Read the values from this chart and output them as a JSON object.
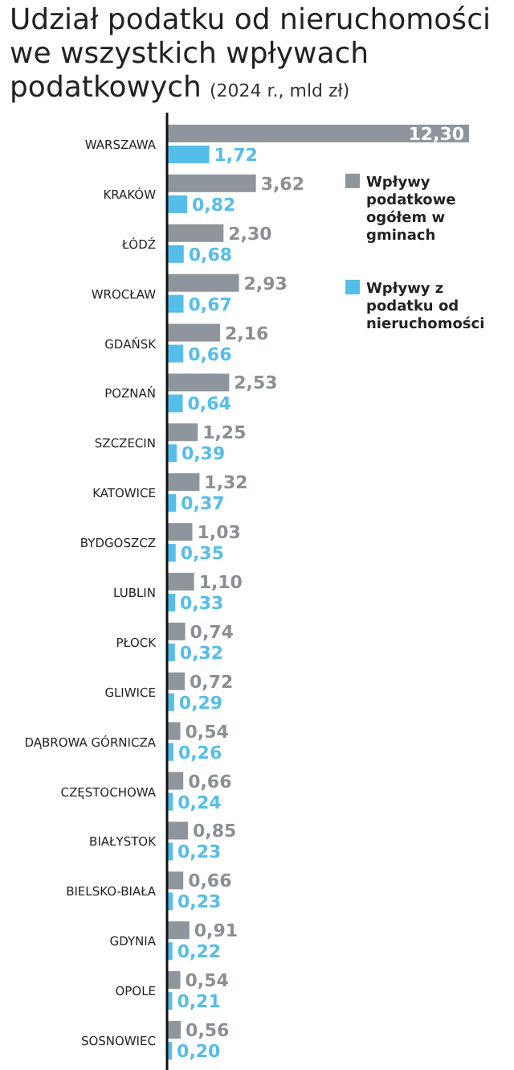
{
  "chart_data": {
    "type": "bar",
    "orientation": "horizontal",
    "title": "Udział podatku od nieruchomości we wszystkich wpływach podatkowych",
    "subtitle": "(2024 r., mld zł)",
    "legend": "right",
    "categories": [
      "WARSZAWA",
      "KRAKÓW",
      "ŁÓDŹ",
      "WROCŁAW",
      "GDAŃSK",
      "POZNAŃ",
      "SZCZECIN",
      "KATOWICE",
      "BYDGOSZCZ",
      "LUBLIN",
      "PŁOCK",
      "GLIWICE",
      "DĄBROWA GÓRNICZA",
      "CZĘSTOCHOWA",
      "BIAŁYSTOK",
      "BIELSKO-BIAŁA",
      "GDYNIA",
      "OPOLE",
      "SOSNOWIEC"
    ],
    "series": [
      {
        "name": "Wpływy podatkowe ogółem w gminach",
        "color": "#8e959c",
        "values": [
          12.3,
          3.62,
          2.3,
          2.93,
          2.16,
          2.53,
          1.25,
          1.32,
          1.03,
          1.1,
          0.74,
          0.72,
          0.54,
          0.66,
          0.85,
          0.66,
          0.91,
          0.54,
          0.56
        ],
        "value_labels": [
          "12,30",
          "3,62",
          "2,30",
          "2,93",
          "2,16",
          "2,53",
          "1,25",
          "1,32",
          "1,03",
          "1,10",
          "0,74",
          "0,72",
          "0,54",
          "0,66",
          "0,85",
          "0,66",
          "0,91",
          "0,54",
          "0,56"
        ]
      },
      {
        "name": "Wpływy z podatku od nieruchomości",
        "color": "#55bde9",
        "values": [
          1.72,
          0.82,
          0.68,
          0.67,
          0.66,
          0.64,
          0.39,
          0.37,
          0.35,
          0.33,
          0.32,
          0.29,
          0.26,
          0.24,
          0.23,
          0.23,
          0.22,
          0.21,
          0.2
        ],
        "value_labels": [
          "1,72",
          "0,82",
          "0,68",
          "0,67",
          "0,66",
          "0,64",
          "0,39",
          "0,37",
          "0,35",
          "0,33",
          "0,32",
          "0,29",
          "0,26",
          "0,24",
          "0,23",
          "0,23",
          "0,22",
          "0,21",
          "0,20"
        ]
      }
    ]
  }
}
